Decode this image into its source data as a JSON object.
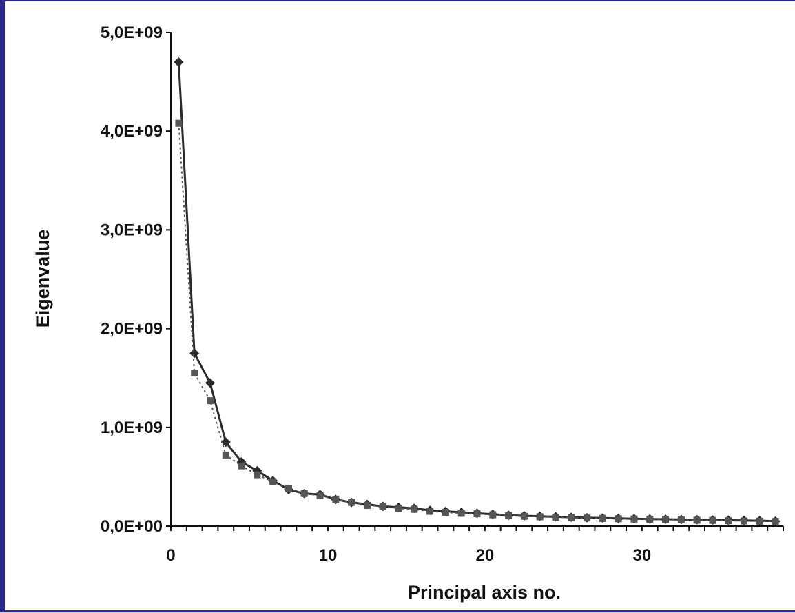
{
  "chart_data": {
    "type": "line",
    "title": "",
    "xlabel": "Principal axis no.",
    "ylabel": "Eigenvalue",
    "xlim": [
      0,
      39
    ],
    "ylim": [
      0,
      5000000000
    ],
    "x_ticks": [
      0,
      10,
      20,
      30
    ],
    "x_tick_labels": [
      "0",
      "10",
      "20",
      "30"
    ],
    "y_ticks": [
      0,
      1000000000,
      2000000000,
      3000000000,
      4000000000,
      5000000000
    ],
    "y_tick_labels": [
      "0,0E+00",
      "1,0E+09",
      "2,0E+09",
      "3,0E+09",
      "4,0E+09",
      "5,0E+09"
    ],
    "grid": false,
    "legend": "none",
    "series": [
      {
        "marker": "diamond",
        "line": "solid",
        "color": "#2b2b2b",
        "x": [
          0.5,
          1.5,
          2.5,
          3.5,
          4.5,
          5.5,
          6.5,
          7.5,
          8.5,
          9.5,
          10.5,
          11.5,
          12.5,
          13.5,
          14.5,
          15.5,
          16.5,
          17.5,
          18.5,
          19.5,
          20.5,
          21.5,
          22.5,
          23.5,
          24.5,
          25.5,
          26.5,
          27.5,
          28.5,
          29.5,
          30.5,
          31.5,
          32.5,
          33.5,
          34.5,
          35.5,
          36.5,
          37.5,
          38.5
        ],
        "values": [
          4700000000,
          1750000000,
          1450000000,
          850000000,
          650000000,
          560000000,
          460000000,
          370000000,
          330000000,
          320000000,
          270000000,
          240000000,
          220000000,
          200000000,
          190000000,
          180000000,
          160000000,
          150000000,
          140000000,
          130000000,
          120000000,
          110000000,
          105000000,
          100000000,
          95000000,
          90000000,
          85000000,
          82000000,
          78000000,
          75000000,
          72000000,
          70000000,
          67000000,
          65000000,
          62000000,
          60000000,
          58000000,
          55000000,
          50000000
        ]
      },
      {
        "marker": "square",
        "line": "dotted",
        "color": "#555555",
        "x": [
          0.5,
          1.5,
          2.5,
          3.5,
          4.5,
          5.5,
          6.5,
          7.5,
          8.5,
          9.5,
          10.5,
          11.5,
          12.5,
          13.5,
          14.5,
          15.5,
          16.5,
          17.5,
          18.5,
          19.5,
          20.5,
          21.5,
          22.5,
          23.5,
          24.5,
          25.5,
          26.5,
          27.5,
          28.5,
          29.5,
          30.5,
          31.5,
          32.5,
          33.5,
          34.5,
          35.5,
          36.5,
          37.5,
          38.5
        ],
        "values": [
          4080000000,
          1550000000,
          1270000000,
          720000000,
          610000000,
          520000000,
          450000000,
          380000000,
          330000000,
          310000000,
          270000000,
          240000000,
          210000000,
          200000000,
          180000000,
          170000000,
          150000000,
          140000000,
          130000000,
          125000000,
          115000000,
          108000000,
          100000000,
          95000000,
          90000000,
          86000000,
          82000000,
          78000000,
          75000000,
          72000000,
          69000000,
          66000000,
          63000000,
          60000000,
          58000000,
          55000000,
          52000000,
          50000000,
          48000000
        ]
      }
    ]
  }
}
